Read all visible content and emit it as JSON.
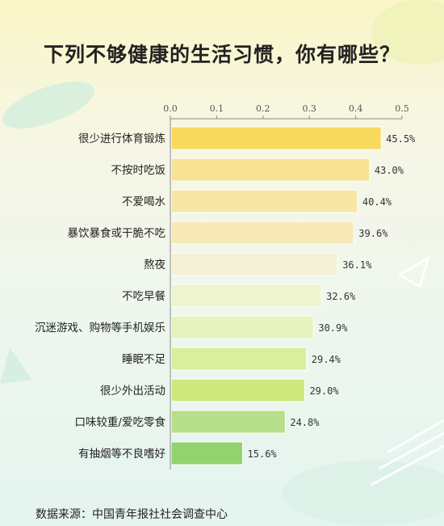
{
  "chart_data": {
    "type": "bar",
    "orientation": "horizontal",
    "title": "下列不够健康的生活习惯，你有哪些？",
    "categories": [
      "很少进行体育锻炼",
      "不按时吃饭",
      "不爱喝水",
      "暴饮暴食或干脆不吃",
      "熬夜",
      "不吃早餐",
      "沉迷游戏、购物等手机娱乐",
      "睡眠不足",
      "很少外出活动",
      "口味较重/爱吃零食",
      "有抽烟等不良嗜好"
    ],
    "values": [
      0.455,
      0.43,
      0.404,
      0.396,
      0.361,
      0.326,
      0.309,
      0.294,
      0.29,
      0.248,
      0.156
    ],
    "value_labels": [
      "45.5%",
      "43.0%",
      "40.4%",
      "39.6%",
      "36.1%",
      "32.6%",
      "30.9%",
      "29.4%",
      "29.0%",
      "24.8%",
      "15.6%"
    ],
    "bar_colors": [
      "#f7da5e",
      "#f8e294",
      "#f8e6a6",
      "#f8eab8",
      "#f5f1d6",
      "#eef4cf",
      "#e6f2c0",
      "#d9ef9c",
      "#cfe97f",
      "#b8e08a",
      "#92d36e"
    ],
    "xticks": [
      "0.0",
      "0.1",
      "0.2",
      "0.3",
      "0.4",
      "0.5"
    ],
    "xlim": [
      0,
      0.5
    ],
    "xaxis_position": "top",
    "grid": false,
    "legend": "none"
  },
  "source": "数据来源：中国青年报社社会调查中心"
}
